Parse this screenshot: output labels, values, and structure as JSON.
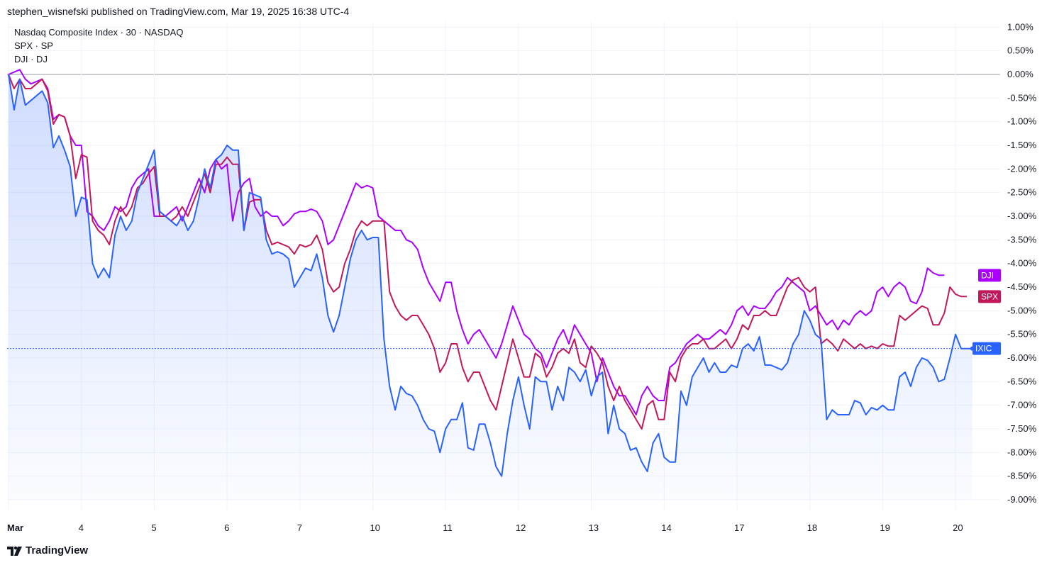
{
  "header": {
    "publish_text": "stephen_wisnefski published on TradingView.com, Mar 19, 2025 16:38 UTC-4"
  },
  "footer": {
    "brand": "TradingView"
  },
  "colors": {
    "ixic": "#2962ff",
    "spx": "#c2185b",
    "dji": "#aa00ff",
    "grid": "#f0f3fa",
    "zero": "#9598a1"
  },
  "chart_data": {
    "type": "line",
    "title": "Nasdaq Composite Index · 30 · NASDAQ",
    "legend": [
      "Nasdaq Composite Index · 30 · NASDAQ",
      "SPX · SP",
      "DJI · DJ"
    ],
    "xlabel": "",
    "ylabel": "",
    "ylim": [
      -9.3,
      1.2
    ],
    "y_ticks": [
      "1.00%",
      "0.50%",
      "0.00%",
      "-0.50%",
      "-1.00%",
      "-1.50%",
      "-2.00%",
      "-2.50%",
      "-3.00%",
      "-3.50%",
      "-4.00%",
      "-4.50%",
      "-5.00%",
      "-5.50%",
      "-6.00%",
      "-6.50%",
      "-7.00%",
      "-7.50%",
      "-8.00%",
      "-8.50%",
      "-9.00%"
    ],
    "y_tick_values": [
      1.0,
      0.5,
      0.0,
      -0.5,
      -1.0,
      -1.5,
      -2.0,
      -2.5,
      -3.0,
      -3.5,
      -4.0,
      -4.5,
      -5.0,
      -5.5,
      -6.0,
      -6.5,
      -7.0,
      -7.5,
      -8.0,
      -8.5,
      -9.0
    ],
    "x_ticks": [
      "Mar",
      "4",
      "5",
      "6",
      "7",
      "10",
      "11",
      "12",
      "13",
      "14",
      "17",
      "18",
      "19",
      "20"
    ],
    "x_tick_index": [
      0,
      13,
      26,
      39,
      52,
      65,
      78,
      91,
      104,
      117,
      130,
      143,
      156,
      169
    ],
    "series": [
      {
        "name": "DJI",
        "tag": "DJI",
        "color": "#aa00ff",
        "values": [
          0.0,
          0.05,
          0.1,
          -0.1,
          -0.2,
          -0.15,
          -0.1,
          -0.3,
          -0.95,
          -0.85,
          -0.9,
          -1.3,
          -1.5,
          -1.5,
          -2.9,
          -3.0,
          -3.2,
          -3.3,
          -3.1,
          -2.8,
          -2.9,
          -2.8,
          -2.4,
          -2.2,
          -2.1,
          -2.0,
          -3.0,
          -3.0,
          -3.0,
          -2.9,
          -2.8,
          -3.1,
          -2.8,
          -2.5,
          -2.2,
          -2.5,
          -2.0,
          -1.8,
          -2.0,
          -1.9,
          -3.1,
          -2.5,
          -2.3,
          -2.2,
          -2.8,
          -3.0,
          -2.9,
          -3.0,
          -3.0,
          -3.2,
          -3.1,
          -2.95,
          -2.9,
          -2.9,
          -2.85,
          -2.9,
          -3.1,
          -3.6,
          -3.5,
          -3.2,
          -2.9,
          -2.6,
          -2.3,
          -2.4,
          -2.35,
          -2.4,
          -3.0,
          -3.1,
          -3.2,
          -3.3,
          -3.3,
          -3.5,
          -3.55,
          -3.7,
          -4.1,
          -4.4,
          -4.6,
          -4.8,
          -4.4,
          -4.4,
          -5.0,
          -5.4,
          -5.7,
          -5.5,
          -5.4,
          -5.6,
          -5.8,
          -6.0,
          -5.7,
          -5.3,
          -4.9,
          -5.2,
          -5.5,
          -5.6,
          -5.8,
          -5.9,
          -6.2,
          -5.9,
          -5.6,
          -5.4,
          -5.7,
          -5.3,
          -5.5,
          -5.7,
          -5.9,
          -6.5,
          -6.0,
          -6.3,
          -6.6,
          -6.8,
          -6.8,
          -7.0,
          -7.2,
          -6.8,
          -6.6,
          -6.8,
          -6.9,
          -6.9,
          -6.2,
          -6.1,
          -5.9,
          -5.7,
          -5.6,
          -5.5,
          -5.6,
          -5.6,
          -5.5,
          -5.4,
          -5.5,
          -5.3,
          -5.0,
          -4.9,
          -5.1,
          -4.9,
          -4.95,
          -4.95,
          -4.8,
          -4.6,
          -4.5,
          -4.3,
          -4.4,
          -4.5,
          -4.6,
          -5.0,
          -4.9,
          -5.1,
          -5.3,
          -5.2,
          -5.4,
          -5.2,
          -5.3,
          -5.1,
          -5.0,
          -5.1,
          -5.0,
          -4.6,
          -4.5,
          -4.7,
          -4.5,
          -4.4,
          -4.5,
          -4.8,
          -4.85,
          -4.6,
          -4.1,
          -4.2,
          -4.25,
          -4.25
        ]
      },
      {
        "name": "SPX",
        "tag": "SPX",
        "color": "#c2185b",
        "values": [
          0.0,
          -0.3,
          -0.1,
          -0.3,
          -0.3,
          -0.2,
          -0.1,
          -0.35,
          -1.05,
          -0.85,
          -0.9,
          -1.3,
          -2.2,
          -1.7,
          -1.75,
          -3.1,
          -3.3,
          -3.4,
          -3.6,
          -3.1,
          -2.8,
          -3.0,
          -2.8,
          -2.4,
          -2.3,
          -2.1,
          -1.95,
          -3.0,
          -3.0,
          -3.1,
          -3.0,
          -2.8,
          -3.0,
          -2.7,
          -2.4,
          -2.1,
          -2.5,
          -1.9,
          -1.9,
          -1.75,
          -1.9,
          -1.9,
          -3.3,
          -2.7,
          -2.65,
          -2.65,
          -3.3,
          -3.6,
          -3.55,
          -3.6,
          -3.65,
          -3.8,
          -3.6,
          -3.65,
          -3.6,
          -3.4,
          -3.7,
          -4.4,
          -4.6,
          -4.5,
          -4.0,
          -3.7,
          -3.3,
          -3.1,
          -3.2,
          -3.1,
          -3.1,
          -3.1,
          -4.6,
          -4.9,
          -5.1,
          -5.2,
          -5.1,
          -5.1,
          -5.3,
          -5.5,
          -5.8,
          -6.3,
          -6.1,
          -5.7,
          -5.7,
          -6.2,
          -6.5,
          -6.3,
          -6.3,
          -6.6,
          -6.9,
          -7.1,
          -6.6,
          -6.1,
          -5.6,
          -6.0,
          -6.4,
          -6.4,
          -5.9,
          -6.0,
          -6.4,
          -6.2,
          -5.9,
          -5.8,
          -5.9,
          -5.6,
          -6.1,
          -6.2,
          -5.75,
          -5.9,
          -6.1,
          -6.6,
          -6.9,
          -6.6,
          -6.9,
          -7.1,
          -7.3,
          -7.5,
          -7.0,
          -6.9,
          -7.3,
          -7.3,
          -6.3,
          -6.5,
          -6.0,
          -5.8,
          -5.7,
          -5.7,
          -5.6,
          -5.8,
          -5.8,
          -5.7,
          -5.6,
          -5.8,
          -5.6,
          -5.3,
          -5.4,
          -5.1,
          -5.1,
          -5.0,
          -5.1,
          -5.1,
          -4.8,
          -4.5,
          -4.35,
          -4.3,
          -4.5,
          -4.6,
          -4.5,
          -5.7,
          -5.6,
          -5.7,
          -5.85,
          -5.6,
          -5.7,
          -5.8,
          -5.7,
          -5.8,
          -5.75,
          -5.8,
          -5.7,
          -5.75,
          -5.75,
          -5.1,
          -5.2,
          -5.1,
          -5.0,
          -4.9,
          -4.95,
          -5.3,
          -5.3,
          -5.05,
          -4.5,
          -4.65,
          -4.7,
          -4.7
        ]
      },
      {
        "name": "Nasdaq Composite Index",
        "tag": "IXIC",
        "color": "#2962ff",
        "values": [
          0.0,
          -0.75,
          -0.1,
          -0.65,
          -0.55,
          -0.45,
          -0.35,
          -0.6,
          -1.55,
          -1.3,
          -1.6,
          -1.95,
          -3.0,
          -2.6,
          -2.65,
          -4.0,
          -4.3,
          -4.1,
          -4.3,
          -3.4,
          -3.0,
          -3.3,
          -3.1,
          -2.5,
          -2.2,
          -1.9,
          -1.6,
          -2.9,
          -3.0,
          -3.1,
          -3.2,
          -3.0,
          -3.3,
          -3.1,
          -2.6,
          -2.0,
          -2.4,
          -1.8,
          -1.7,
          -1.5,
          -1.6,
          -1.6,
          -3.3,
          -2.5,
          -2.55,
          -2.6,
          -3.5,
          -3.8,
          -3.75,
          -3.8,
          -3.9,
          -4.5,
          -4.3,
          -4.1,
          -4.15,
          -3.8,
          -4.3,
          -5.1,
          -5.45,
          -5.1,
          -4.5,
          -3.9,
          -3.5,
          -3.3,
          -3.5,
          -3.45,
          -3.45,
          -5.6,
          -6.6,
          -7.1,
          -6.6,
          -6.75,
          -6.8,
          -7.0,
          -7.3,
          -7.5,
          -7.55,
          -8.0,
          -7.5,
          -7.3,
          -7.3,
          -6.95,
          -7.9,
          -7.95,
          -7.4,
          -7.4,
          -7.8,
          -8.3,
          -8.5,
          -7.6,
          -6.9,
          -6.4,
          -7.0,
          -7.5,
          -6.4,
          -6.5,
          -6.5,
          -7.1,
          -6.6,
          -6.9,
          -6.2,
          -6.3,
          -6.5,
          -6.25,
          -6.8,
          -6.4,
          -6.3,
          -7.6,
          -7.0,
          -7.5,
          -7.6,
          -7.95,
          -7.9,
          -8.2,
          -8.4,
          -7.8,
          -7.6,
          -8.1,
          -8.2,
          -8.2,
          -6.7,
          -7.0,
          -6.4,
          -6.2,
          -6.0,
          -6.3,
          -6.1,
          -6.3,
          -6.3,
          -6.15,
          -6.2,
          -5.8,
          -5.7,
          -5.85,
          -5.55,
          -6.15,
          -6.15,
          -6.2,
          -6.25,
          -6.1,
          -5.7,
          -5.5,
          -5.0,
          -5.2,
          -5.5,
          -5.6,
          -7.3,
          -7.1,
          -7.2,
          -7.2,
          -7.2,
          -6.9,
          -6.95,
          -7.2,
          -7.05,
          -7.1,
          -7.0,
          -7.1,
          -7.1,
          -6.4,
          -6.3,
          -6.6,
          -6.2,
          -6.0,
          -6.05,
          -6.2,
          -6.5,
          -6.45,
          -6.0,
          -5.5,
          -5.8,
          -5.8,
          -5.8
        ]
      }
    ]
  }
}
